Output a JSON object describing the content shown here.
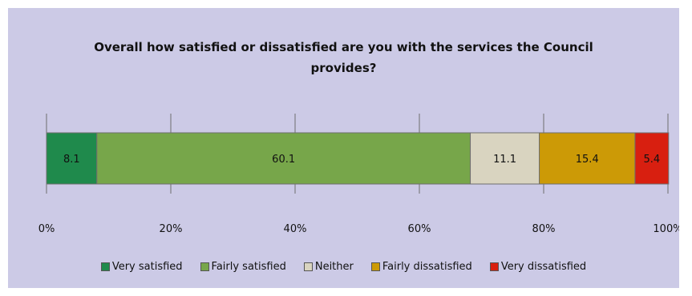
{
  "chart_data": {
    "type": "bar",
    "orientation": "horizontal-stacked",
    "title": "Overall how satisfied or dissatisfied are you with the services the Council provides?",
    "title_lines": [
      "Overall how satisfied or dissatisfied are you with the services the Council",
      "provides?"
    ],
    "series": [
      {
        "name": "Very satisfied",
        "value": 8.1,
        "label": "8.1",
        "color": "#1f8a4c"
      },
      {
        "name": "Fairly satisfied",
        "value": 60.1,
        "label": "60.1",
        "color": "#77a64a"
      },
      {
        "name": "Neither",
        "value": 11.1,
        "label": "11.1",
        "color": "#d9d4c0"
      },
      {
        "name": "Fairly dissatisfied",
        "value": 15.4,
        "label": "15.4",
        "color": "#cc9a06"
      },
      {
        "name": "Very dissatisfied",
        "value": 5.4,
        "label": "5.4",
        "color": "#d81f10"
      }
    ],
    "x_ticks": [
      "0%",
      "20%",
      "40%",
      "60%",
      "80%",
      "100%"
    ],
    "xlim": [
      0,
      100
    ],
    "grid": true,
    "legend_position": "bottom",
    "background_color": "#cccae6"
  }
}
